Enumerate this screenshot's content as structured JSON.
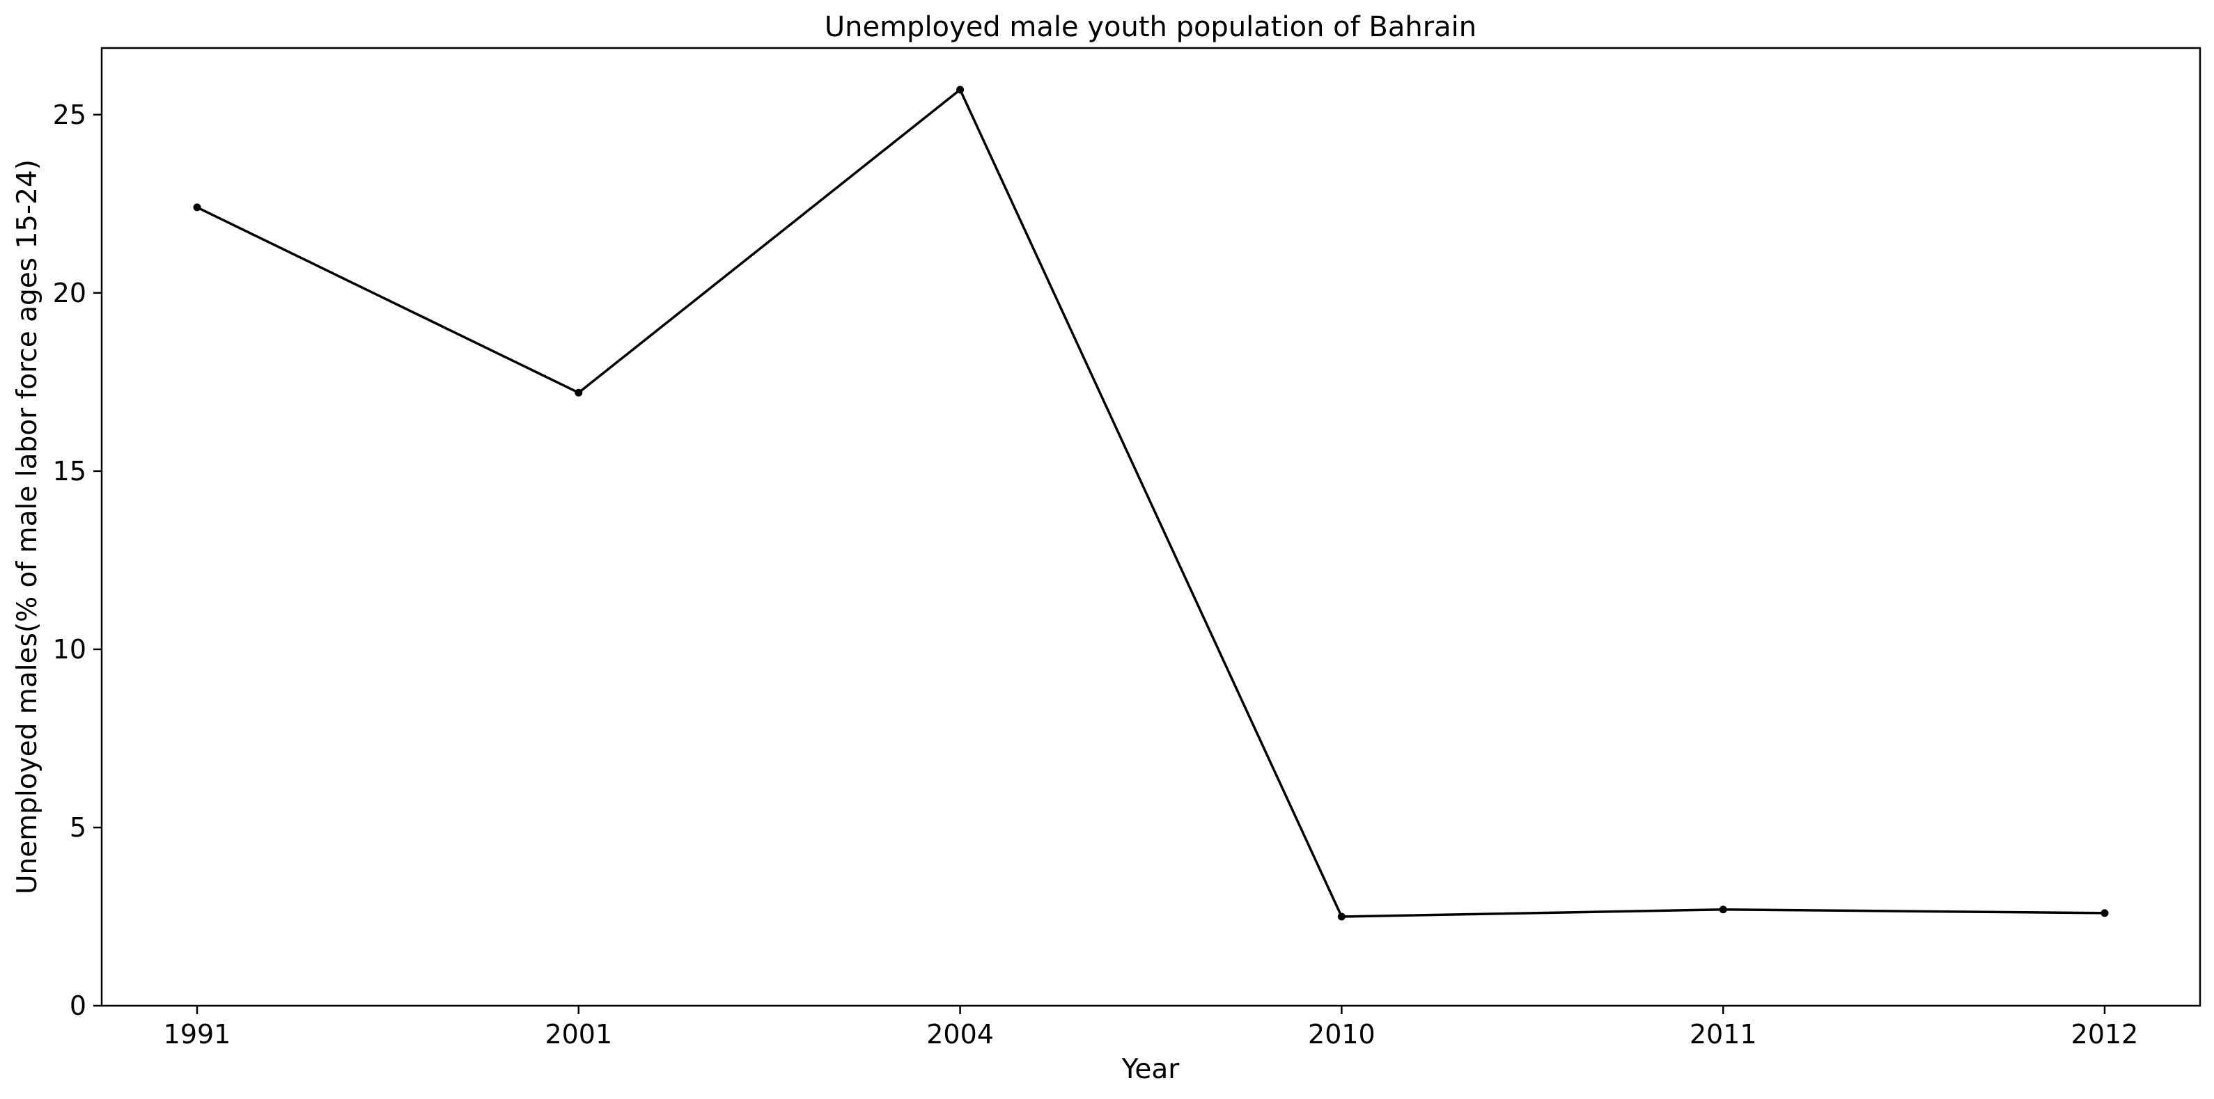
{
  "chart_data": {
    "type": "line",
    "title": "Unemployed male youth population of Bahrain",
    "xlabel": "Year",
    "ylabel": "Unemployed males(% of male labor force ages 15-24)",
    "categories": [
      "1991",
      "2001",
      "2004",
      "2010",
      "2011",
      "2012"
    ],
    "series": [
      {
        "values": [
          22.4,
          17.2,
          25.7,
          2.5,
          2.7,
          2.6
        ]
      }
    ],
    "yticks": [
      0,
      5,
      10,
      15,
      20,
      25
    ],
    "ylim": [
      0,
      26.87
    ],
    "grid": false,
    "line_color": "#000000",
    "marker": "dot"
  }
}
